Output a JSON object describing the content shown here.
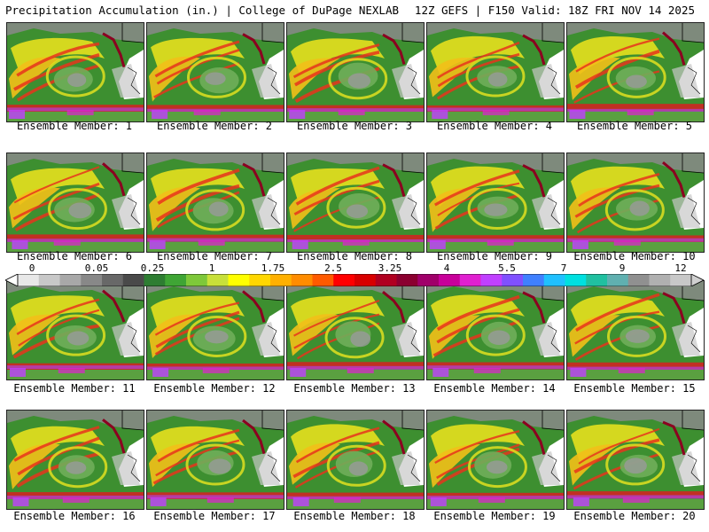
{
  "header": {
    "left_title": "Precipitation Accumulation (in.) | College of DuPage NEXLAB",
    "right_title": "12Z GEFS | F150 Valid: 18Z FRI NOV 14 2025"
  },
  "members": [
    {
      "label": "Ensemble Member: 1"
    },
    {
      "label": "Ensemble Member: 2"
    },
    {
      "label": "Ensemble Member: 3"
    },
    {
      "label": "Ensemble Member: 4"
    },
    {
      "label": "Ensemble Member: 5"
    },
    {
      "label": "Ensemble Member: 6"
    },
    {
      "label": "Ensemble Member: 7"
    },
    {
      "label": "Ensemble Member: 8"
    },
    {
      "label": "Ensemble Member: 9"
    },
    {
      "label": "Ensemble Member: 10"
    },
    {
      "label": "Ensemble Member: 11"
    },
    {
      "label": "Ensemble Member: 12"
    },
    {
      "label": "Ensemble Member: 13"
    },
    {
      "label": "Ensemble Member: 14"
    },
    {
      "label": "Ensemble Member: 15"
    },
    {
      "label": "Ensemble Member: 16"
    },
    {
      "label": "Ensemble Member: 17"
    },
    {
      "label": "Ensemble Member: 18"
    },
    {
      "label": "Ensemble Member: 19"
    },
    {
      "label": "Ensemble Member: 20"
    }
  ],
  "colorbar": {
    "tick_labels": [
      "0",
      "0.05",
      "0.25",
      "1",
      "1.75",
      "2.5",
      "3.25",
      "4",
      "5.5",
      "7",
      "9",
      "12"
    ],
    "colors": [
      "#e8e8e8",
      "#c8c8c8",
      "#a8a8a8",
      "#888888",
      "#686868",
      "#4a4a4a",
      "#2e7d32",
      "#3fa535",
      "#7ec83a",
      "#c8e03a",
      "#ffff00",
      "#ffd700",
      "#ffb000",
      "#ff8c00",
      "#ff5a00",
      "#ff0000",
      "#d80000",
      "#b00020",
      "#8b0030",
      "#a0006a",
      "#c8009a",
      "#e020d0",
      "#c040ff",
      "#8050ff",
      "#4080ff",
      "#20c0ff",
      "#00e0e0",
      "#20c0a0",
      "#60b0b0",
      "#909090",
      "#b0b0b0",
      "#c8c8c8"
    ]
  }
}
